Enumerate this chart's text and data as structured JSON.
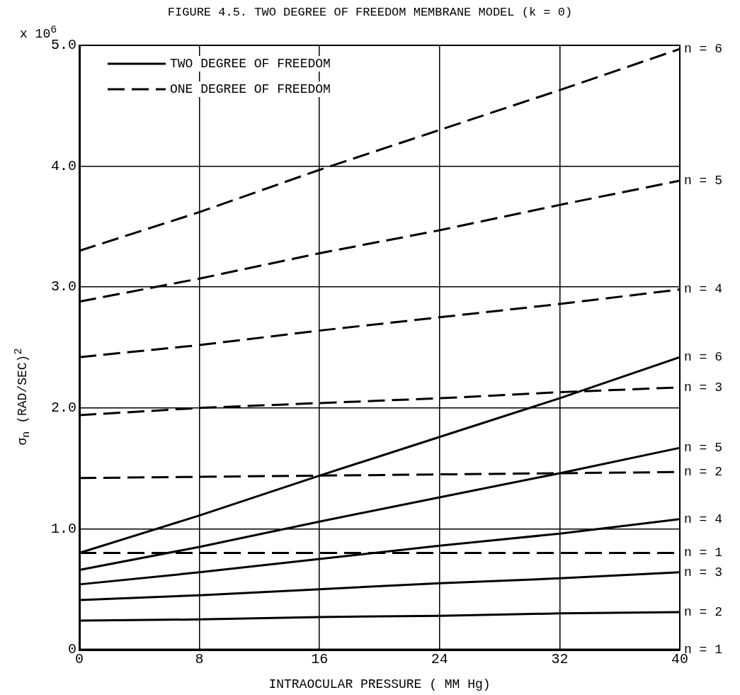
{
  "chart_data": {
    "type": "line",
    "title": "FIGURE 4.5.  TWO DEGREE OF FREEDOM MEMBRANE MODEL (k = 0)",
    "xlabel": "INTRAOCULAR PRESSURE ( MM Hg)",
    "ylabel": "σ$_{n}$ (RAD/SEC)$^{2}$",
    "x": [
      0,
      8,
      16,
      24,
      32,
      40
    ],
    "series": [
      {
        "name": "n = 6",
        "color": "#000000",
        "line_style": "solid",
        "values": [
          0.8,
          1.11,
          1.44,
          1.76,
          2.08,
          2.42
        ]
      },
      {
        "name": "n = 5",
        "color": "#000000",
        "line_style": "solid",
        "values": [
          0.66,
          0.85,
          1.06,
          1.26,
          1.46,
          1.67
        ]
      },
      {
        "name": "n = 4",
        "color": "#000000",
        "line_style": "solid",
        "values": [
          0.54,
          0.64,
          0.75,
          0.86,
          0.96,
          1.08
        ]
      },
      {
        "name": "n = 3",
        "color": "#000000",
        "line_style": "solid",
        "values": [
          0.41,
          0.45,
          0.5,
          0.55,
          0.59,
          0.64
        ]
      },
      {
        "name": "n = 2",
        "color": "#000000",
        "line_style": "solid",
        "values": [
          0.24,
          0.25,
          0.27,
          0.28,
          0.3,
          0.31
        ]
      },
      {
        "name": "n = 1",
        "color": "#000000",
        "line_style": "solid",
        "values": [
          0,
          0,
          0,
          0,
          0,
          0
        ]
      },
      {
        "name": "n = 6",
        "color": "#000000",
        "line_style": "dashed",
        "values": [
          3.3,
          3.62,
          3.97,
          4.3,
          4.63,
          4.97
        ]
      },
      {
        "name": "n = 5",
        "color": "#000000",
        "line_style": "dashed",
        "values": [
          2.88,
          3.07,
          3.28,
          3.47,
          3.68,
          3.88
        ]
      },
      {
        "name": "n = 4",
        "color": "#000000",
        "line_style": "dashed",
        "values": [
          2.42,
          2.52,
          2.64,
          2.75,
          2.86,
          2.98
        ]
      },
      {
        "name": "n = 3",
        "color": "#000000",
        "line_style": "dashed",
        "values": [
          1.94,
          2.0,
          2.04,
          2.08,
          2.13,
          2.17
        ]
      },
      {
        "name": "n = 2",
        "color": "#000000",
        "line_style": "dashed",
        "values": [
          1.42,
          1.43,
          1.44,
          1.45,
          1.46,
          1.47
        ]
      },
      {
        "name": "n = 1",
        "color": "#000000",
        "line_style": "dashed",
        "values": [
          0.8,
          0.8,
          0.8,
          0.8,
          0.8,
          0.8
        ]
      }
    ],
    "annotations": [
      "TWO DEGREE OF FREEDOM",
      "ONE DEGREE OF FREEDOM",
      "x 10$^{6}$"
    ],
    "xlim": [
      0,
      40
    ],
    "xticks": [
      0,
      8,
      16,
      24,
      32,
      40
    ],
    "ylim": [
      0,
      5
    ],
    "yticks": [
      0,
      {
        "value": 1,
        "label": "1.0"
      },
      {
        "value": 2,
        "label": "2.0"
      },
      {
        "value": 3,
        "label": "3.0"
      },
      {
        "value": 4,
        "label": "4.0"
      },
      {
        "value": 5,
        "label": "5.0"
      }
    ],
    "grid": true
  }
}
